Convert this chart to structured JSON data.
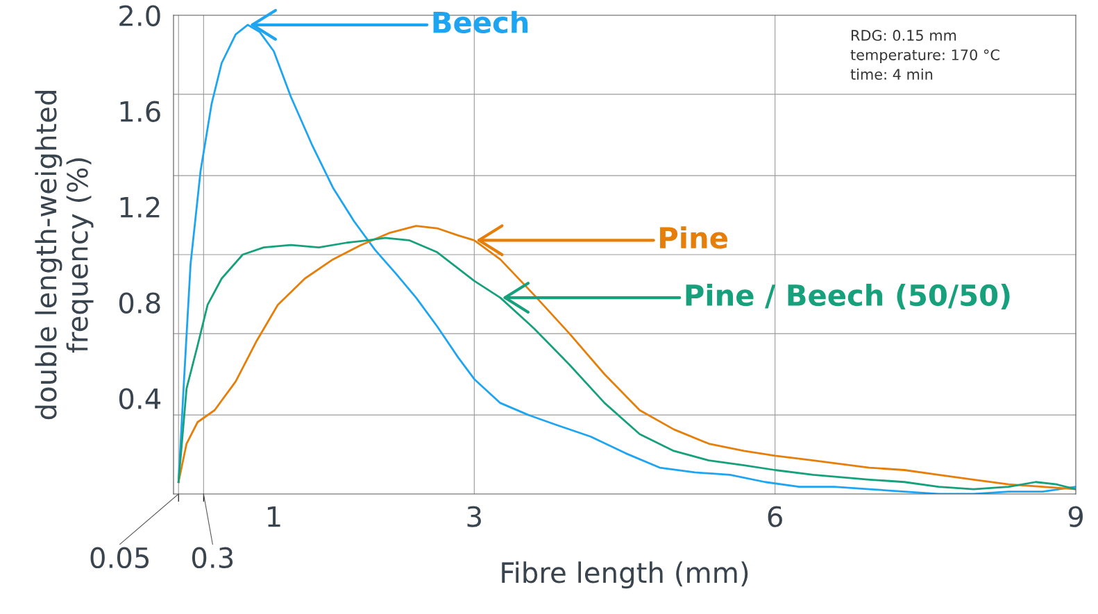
{
  "chart_data": {
    "type": "line",
    "xlabel": "Fibre length (mm)",
    "ylabel": "double length-weighted\nfrequency (%)",
    "xlim": [
      0,
      9
    ],
    "ylim": [
      0,
      2.0
    ],
    "xticks": [
      {
        "value": 0.05,
        "label": null
      },
      {
        "value": 0.3,
        "label": null
      },
      1,
      3,
      6,
      9
    ],
    "yticks": [
      0.4,
      0.8,
      1.2,
      1.6,
      {
        "value": 2.0,
        "label": "2.0"
      }
    ],
    "grid": false,
    "ref_lines": [
      {
        "axis": "y",
        "value": 0.33,
        "color": "#9a9a9a"
      },
      {
        "axis": "y",
        "value": 0.67,
        "color": "#9a9a9a"
      },
      {
        "axis": "y",
        "value": 1.0,
        "color": "#9a9a9a"
      },
      {
        "axis": "y",
        "value": 1.33,
        "color": "#9a9a9a"
      },
      {
        "axis": "y",
        "value": 1.67,
        "color": "#9a9a9a"
      },
      {
        "axis": "x",
        "value": 0.05,
        "color": "#9a9a9a"
      },
      {
        "axis": "x",
        "value": 0.3,
        "color": "#9a9a9a"
      },
      {
        "axis": "x",
        "value": 3,
        "color": "#9a9a9a"
      },
      {
        "axis": "x",
        "value": 6,
        "color": "#9a9a9a"
      }
    ],
    "series": [
      {
        "color": "#1ea5f2",
        "x": [
          0.05,
          0.1,
          0.17,
          0.27,
          0.38,
          0.48,
          0.62,
          0.74,
          0.86,
          1.0,
          1.17,
          1.38,
          1.59,
          1.8,
          2.01,
          2.22,
          2.42,
          2.63,
          2.84,
          3.0,
          3.26,
          3.54,
          3.81,
          4.16,
          4.51,
          4.85,
          5.2,
          5.55,
          5.9,
          6.24,
          6.59,
          6.94,
          7.29,
          7.63,
          7.98,
          8.33,
          8.67,
          9.0
        ],
        "values": [
          0.05,
          0.44,
          0.96,
          1.35,
          1.63,
          1.8,
          1.92,
          1.96,
          1.93,
          1.85,
          1.66,
          1.46,
          1.28,
          1.14,
          1.02,
          0.92,
          0.82,
          0.7,
          0.57,
          0.48,
          0.38,
          0.33,
          0.29,
          0.24,
          0.17,
          0.11,
          0.09,
          0.08,
          0.05,
          0.03,
          0.03,
          0.02,
          0.01,
          0.0,
          0.0,
          0.01,
          0.01,
          0.03
        ]
      },
      {
        "color": "#e67e0a",
        "x": [
          0.05,
          0.13,
          0.24,
          0.41,
          0.62,
          0.83,
          1.04,
          1.31,
          1.59,
          1.87,
          2.15,
          2.42,
          2.63,
          2.84,
          3.0,
          3.26,
          3.6,
          3.95,
          4.3,
          4.65,
          4.99,
          5.34,
          5.69,
          6.0,
          6.38,
          6.94,
          7.29,
          7.63,
          7.98,
          8.33,
          8.67,
          9.0
        ],
        "values": [
          0.05,
          0.21,
          0.3,
          0.35,
          0.47,
          0.64,
          0.79,
          0.9,
          0.98,
          1.04,
          1.09,
          1.12,
          1.11,
          1.08,
          1.06,
          0.98,
          0.83,
          0.67,
          0.5,
          0.35,
          0.27,
          0.21,
          0.18,
          0.16,
          0.14,
          0.11,
          0.1,
          0.08,
          0.06,
          0.04,
          0.03,
          0.02
        ]
      },
      {
        "color": "#16a07c",
        "x": [
          0.05,
          0.13,
          0.24,
          0.34,
          0.48,
          0.69,
          0.9,
          1.17,
          1.45,
          1.73,
          1.94,
          2.11,
          2.35,
          2.63,
          3.0,
          3.26,
          3.6,
          3.95,
          4.3,
          4.65,
          4.99,
          5.34,
          5.69,
          6.0,
          6.38,
          6.94,
          7.29,
          7.63,
          7.98,
          8.33,
          8.6,
          8.81,
          9.0
        ],
        "values": [
          0.05,
          0.44,
          0.62,
          0.79,
          0.9,
          1.0,
          1.03,
          1.04,
          1.03,
          1.05,
          1.06,
          1.07,
          1.06,
          1.01,
          0.89,
          0.82,
          0.69,
          0.54,
          0.38,
          0.25,
          0.18,
          0.14,
          0.12,
          0.1,
          0.08,
          0.06,
          0.05,
          0.03,
          0.02,
          0.03,
          0.05,
          0.04,
          0.02
        ]
      }
    ],
    "annotations": [
      {
        "text": "0.05",
        "x": 0.05,
        "y": 0
      },
      {
        "text": "0.3",
        "x": 0.3,
        "y": 0
      },
      {
        "text": "Beech",
        "x": 0.74,
        "y": 1.96
      },
      {
        "text": "Pine",
        "x": 3.0,
        "y": 1.06
      },
      {
        "text": "Pine / Beech (50/50)",
        "x": 3.26,
        "y": 0.82
      },
      "RDG: 0.15 mm\ntemperature: 170 °C\ntime: 4 min"
    ]
  }
}
